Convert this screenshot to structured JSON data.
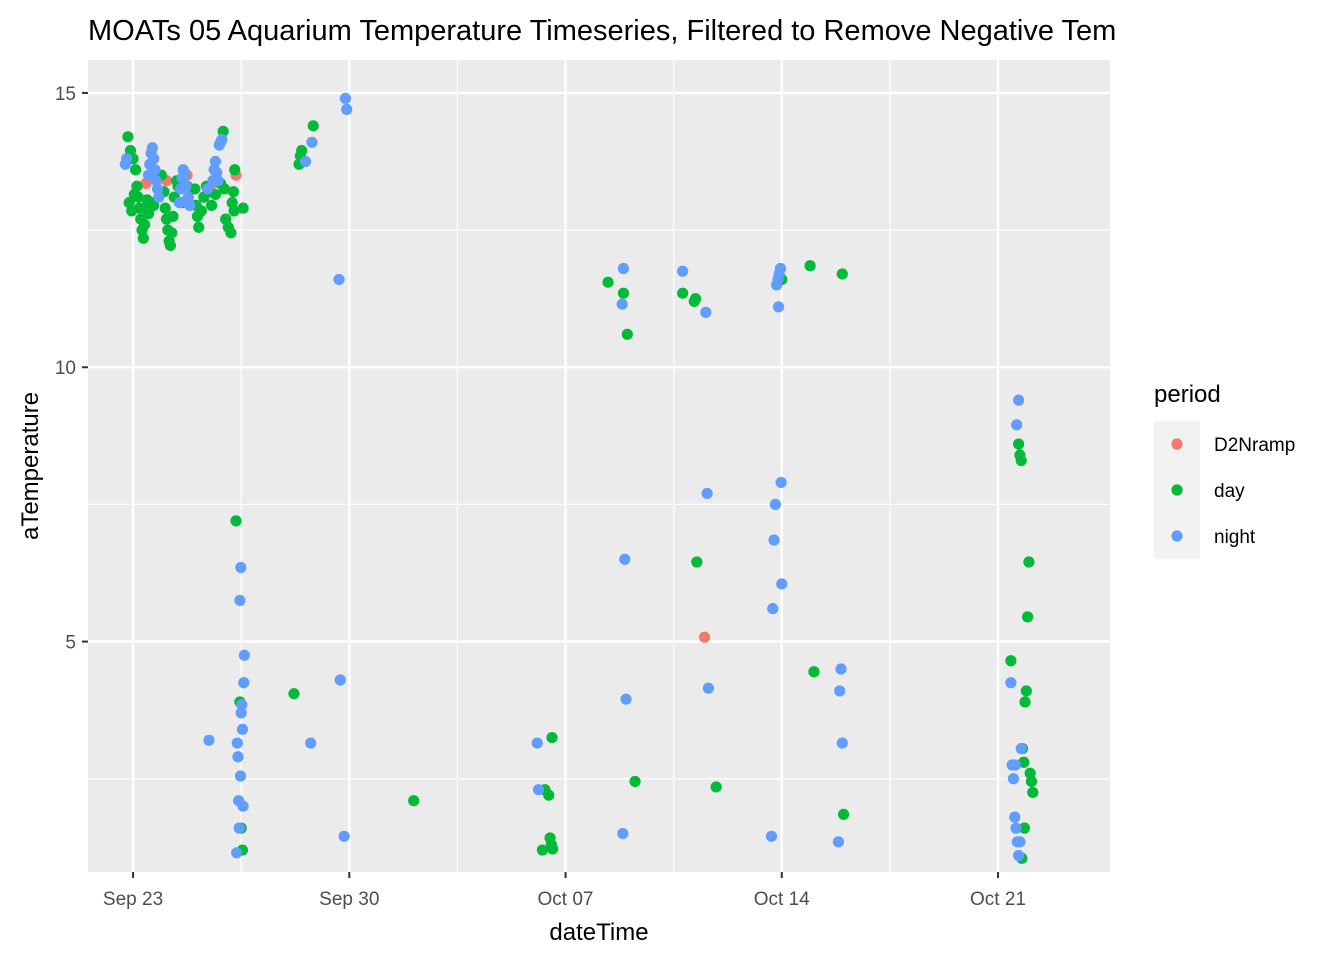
{
  "chart_data": {
    "type": "scatter",
    "title": "MOATs 05 Aquarium Temperature Timeseries, Filtered to Remove Negative Tem",
    "xlabel": "dateTime",
    "ylabel": "aTemperature",
    "x_is_date": true,
    "xlim": [
      "2019-09-21T13:00",
      "2019-10-24T15:00"
    ],
    "ylim": [
      0.8,
      15.6
    ],
    "x_ticks": [
      {
        "label": "Sep 23",
        "value": "2019-09-23T00:00"
      },
      {
        "label": "Sep 30",
        "value": "2019-09-30T00:00"
      },
      {
        "label": "Oct 07",
        "value": "2019-10-07T00:00"
      },
      {
        "label": "Oct 14",
        "value": "2019-10-14T00:00"
      },
      {
        "label": "Oct 21",
        "value": "2019-10-21T00:00"
      }
    ],
    "y_ticks": [
      5,
      10,
      15
    ],
    "grid": true,
    "legend": {
      "title": "period",
      "placement": "right"
    },
    "series": [
      {
        "name": "D2Nramp",
        "color": "#F8766D",
        "points": [
          [
            "2019-09-23T10:00",
            13.35
          ],
          [
            "2019-09-24T02:00",
            13.4
          ],
          [
            "2019-09-24T18:00",
            13.5
          ],
          [
            "2019-09-25T14:00",
            13.35
          ],
          [
            "2019-09-26T08:00",
            13.5
          ],
          [
            "2019-10-11T12:00",
            5.08
          ]
        ]
      },
      {
        "name": "day",
        "color": "#00BA38",
        "points": [
          [
            "2019-09-22T20:00",
            14.2
          ],
          [
            "2019-09-22T22:00",
            13.95
          ],
          [
            "2019-09-23T00:00",
            13.8
          ],
          [
            "2019-09-23T02:00",
            13.6
          ],
          [
            "2019-09-23T03:00",
            13.3
          ],
          [
            "2019-09-23T04:00",
            13.1
          ],
          [
            "2019-09-23T05:00",
            12.9
          ],
          [
            "2019-09-23T06:00",
            12.7
          ],
          [
            "2019-09-23T07:00",
            12.5
          ],
          [
            "2019-09-23T08:00",
            12.35
          ],
          [
            "2019-09-23T09:00",
            12.6
          ],
          [
            "2019-09-23T10:00",
            12.9
          ],
          [
            "2019-09-23T11:00",
            13.05
          ],
          [
            "2019-09-22T21:00",
            13.0
          ],
          [
            "2019-09-22T23:00",
            12.85
          ],
          [
            "2019-09-23T01:00",
            13.15
          ],
          [
            "2019-09-23T12:00",
            12.8
          ],
          [
            "2019-09-23T14:00",
            13.0
          ],
          [
            "2019-09-23T16:00",
            12.95
          ],
          [
            "2019-09-23T22:00",
            13.5
          ],
          [
            "2019-09-24T00:00",
            13.2
          ],
          [
            "2019-09-24T01:00",
            12.9
          ],
          [
            "2019-09-24T02:00",
            12.7
          ],
          [
            "2019-09-24T03:00",
            12.5
          ],
          [
            "2019-09-24T04:00",
            12.3
          ],
          [
            "2019-09-24T05:00",
            12.22
          ],
          [
            "2019-09-24T06:00",
            12.45
          ],
          [
            "2019-09-24T07:00",
            12.75
          ],
          [
            "2019-09-24T08:00",
            13.1
          ],
          [
            "2019-09-24T10:00",
            13.4
          ],
          [
            "2019-09-24T11:00",
            13.3
          ],
          [
            "2019-09-24T14:00",
            13.0
          ],
          [
            "2019-09-24T18:00",
            13.3
          ],
          [
            "2019-09-25T00:00",
            13.25
          ],
          [
            "2019-09-25T01:00",
            12.95
          ],
          [
            "2019-09-25T02:00",
            12.75
          ],
          [
            "2019-09-25T03:00",
            12.55
          ],
          [
            "2019-09-25T05:00",
            12.85
          ],
          [
            "2019-09-25T07:00",
            13.1
          ],
          [
            "2019-09-25T09:00",
            13.3
          ],
          [
            "2019-09-25T11:00",
            13.2
          ],
          [
            "2019-09-25T13:00",
            12.95
          ],
          [
            "2019-09-25T16:00",
            13.15
          ],
          [
            "2019-09-25T20:00",
            13.35
          ],
          [
            "2019-09-25T22:00",
            14.3
          ],
          [
            "2019-09-25T23:00",
            13.25
          ],
          [
            "2019-09-26T00:00",
            12.7
          ],
          [
            "2019-09-26T02:00",
            12.55
          ],
          [
            "2019-09-26T04:00",
            12.45
          ],
          [
            "2019-09-26T05:00",
            13.0
          ],
          [
            "2019-09-26T06:00",
            13.2
          ],
          [
            "2019-09-26T07:00",
            13.6
          ],
          [
            "2019-09-26T08:00",
            7.2
          ],
          [
            "2019-09-26T11:00",
            3.9
          ],
          [
            "2019-09-26T12:00",
            1.6
          ],
          [
            "2019-09-26T13:00",
            1.2
          ],
          [
            "2019-09-26T13:30",
            12.9
          ],
          [
            "2019-09-26T06:30",
            12.85
          ],
          [
            "2019-09-28T05:00",
            4.05
          ],
          [
            "2019-09-28T09:00",
            13.7
          ],
          [
            "2019-09-28T10:00",
            13.85
          ],
          [
            "2019-09-28T11:00",
            13.95
          ],
          [
            "2019-09-28T20:00",
            14.4
          ],
          [
            "2019-10-02T02:00",
            2.1
          ],
          [
            "2019-10-06T06:00",
            1.2
          ],
          [
            "2019-10-06T08:00",
            2.3
          ],
          [
            "2019-10-06T11:00",
            2.2
          ],
          [
            "2019-10-06T12:00",
            1.42
          ],
          [
            "2019-10-06T13:00",
            1.3
          ],
          [
            "2019-10-06T14:00",
            1.22
          ],
          [
            "2019-10-06T13:30",
            3.25
          ],
          [
            "2019-10-08T09:00",
            11.55
          ],
          [
            "2019-10-08T21:00",
            11.35
          ],
          [
            "2019-10-09T00:00",
            10.6
          ],
          [
            "2019-10-09T06:00",
            2.45
          ],
          [
            "2019-10-10T19:00",
            11.35
          ],
          [
            "2019-10-11T04:00",
            11.2
          ],
          [
            "2019-10-11T05:00",
            11.25
          ],
          [
            "2019-10-11T06:00",
            6.45
          ],
          [
            "2019-10-11T21:00",
            2.35
          ],
          [
            "2019-10-14T00:00",
            11.6
          ],
          [
            "2019-10-14T22:00",
            11.85
          ],
          [
            "2019-10-15T01:00",
            4.45
          ],
          [
            "2019-10-15T23:00",
            11.7
          ],
          [
            "2019-10-16T00:00",
            1.85
          ],
          [
            "2019-10-21T10:00",
            4.65
          ],
          [
            "2019-10-21T16:00",
            8.6
          ],
          [
            "2019-10-21T17:00",
            8.4
          ],
          [
            "2019-10-21T18:00",
            8.3
          ],
          [
            "2019-10-21T19:00",
            3.05
          ],
          [
            "2019-10-21T20:00",
            2.8
          ],
          [
            "2019-10-21T21:00",
            3.9
          ],
          [
            "2019-10-21T22:00",
            4.1
          ],
          [
            "2019-10-21T23:00",
            5.45
          ],
          [
            "2019-10-22T00:00",
            6.45
          ],
          [
            "2019-10-22T01:00",
            2.6
          ],
          [
            "2019-10-22T02:00",
            2.45
          ],
          [
            "2019-10-22T03:00",
            2.25
          ],
          [
            "2019-10-21T18:30",
            1.05
          ],
          [
            "2019-10-21T20:30",
            1.6
          ]
        ]
      },
      {
        "name": "night",
        "color": "#619CFF",
        "points": [
          [
            "2019-09-22T18:00",
            13.7
          ],
          [
            "2019-09-22T19:00",
            13.8
          ],
          [
            "2019-09-23T12:00",
            13.5
          ],
          [
            "2019-09-23T13:00",
            13.7
          ],
          [
            "2019-09-23T14:00",
            13.9
          ],
          [
            "2019-09-23T15:00",
            14.0
          ],
          [
            "2019-09-23T16:00",
            13.8
          ],
          [
            "2019-09-23T17:00",
            13.6
          ],
          [
            "2019-09-23T18:00",
            13.4
          ],
          [
            "2019-09-23T19:00",
            13.25
          ],
          [
            "2019-09-23T20:00",
            13.1
          ],
          [
            "2019-09-24T12:00",
            13.0
          ],
          [
            "2019-09-24T13:00",
            13.25
          ],
          [
            "2019-09-24T14:00",
            13.45
          ],
          [
            "2019-09-24T15:00",
            13.6
          ],
          [
            "2019-09-24T16:00",
            13.5
          ],
          [
            "2019-09-24T17:00",
            13.3
          ],
          [
            "2019-09-24T19:00",
            13.1
          ],
          [
            "2019-09-24T20:00",
            12.95
          ],
          [
            "2019-09-25T14:00",
            13.4
          ],
          [
            "2019-09-25T15:00",
            13.6
          ],
          [
            "2019-09-25T16:00",
            13.75
          ],
          [
            "2019-09-25T17:00",
            13.55
          ],
          [
            "2019-09-25T18:00",
            13.4
          ],
          [
            "2019-09-25T19:00",
            14.05
          ],
          [
            "2019-09-25T20:00",
            14.1
          ],
          [
            "2019-09-25T21:00",
            14.15
          ],
          [
            "2019-09-25T10:00",
            13.25
          ],
          [
            "2019-09-25T11:00",
            3.2
          ],
          [
            "2019-09-26T09:00",
            3.15
          ],
          [
            "2019-09-26T09:30",
            2.9
          ],
          [
            "2019-09-26T10:00",
            2.1
          ],
          [
            "2019-09-26T10:30",
            1.6
          ],
          [
            "2019-09-26T08:30",
            1.15
          ],
          [
            "2019-09-26T11:30",
            2.55
          ],
          [
            "2019-09-26T12:00",
            3.7
          ],
          [
            "2019-09-26T12:30",
            3.85
          ],
          [
            "2019-09-26T13:00",
            3.4
          ],
          [
            "2019-09-26T13:30",
            2.0
          ],
          [
            "2019-09-26T14:00",
            4.25
          ],
          [
            "2019-09-26T14:30",
            4.75
          ],
          [
            "2019-09-26T11:00",
            5.75
          ],
          [
            "2019-09-26T11:45",
            6.35
          ],
          [
            "2019-09-28T18:00",
            3.15
          ],
          [
            "2019-09-28T14:00",
            13.75
          ],
          [
            "2019-09-28T19:00",
            14.1
          ],
          [
            "2019-09-29T16:00",
            11.6
          ],
          [
            "2019-09-29T17:00",
            4.3
          ],
          [
            "2019-09-29T20:00",
            1.45
          ],
          [
            "2019-09-29T21:00",
            14.9
          ],
          [
            "2019-09-29T22:00",
            14.7
          ],
          [
            "2019-10-06T02:00",
            3.15
          ],
          [
            "2019-10-06T03:00",
            2.3
          ],
          [
            "2019-10-08T20:00",
            11.15
          ],
          [
            "2019-10-08T21:00",
            11.8
          ],
          [
            "2019-10-08T22:00",
            6.5
          ],
          [
            "2019-10-08T23:00",
            3.95
          ],
          [
            "2019-10-08T20:30",
            1.5
          ],
          [
            "2019-10-10T19:00",
            11.75
          ],
          [
            "2019-10-11T13:00",
            11.0
          ],
          [
            "2019-10-11T14:00",
            7.7
          ],
          [
            "2019-10-11T15:00",
            4.15
          ],
          [
            "2019-10-13T16:00",
            1.45
          ],
          [
            "2019-10-13T17:00",
            5.6
          ],
          [
            "2019-10-13T18:00",
            6.85
          ],
          [
            "2019-10-13T19:00",
            7.5
          ],
          [
            "2019-10-13T20:00",
            11.5
          ],
          [
            "2019-10-13T21:00",
            11.6
          ],
          [
            "2019-10-13T22:00",
            11.7
          ],
          [
            "2019-10-13T23:00",
            11.8
          ],
          [
            "2019-10-13T21:30",
            11.1
          ],
          [
            "2019-10-13T23:30",
            7.9
          ],
          [
            "2019-10-14T00:00",
            6.05
          ],
          [
            "2019-10-15T20:00",
            1.35
          ],
          [
            "2019-10-15T21:00",
            4.1
          ],
          [
            "2019-10-15T22:00",
            4.5
          ],
          [
            "2019-10-15T23:00",
            3.15
          ],
          [
            "2019-10-21T10:00",
            4.25
          ],
          [
            "2019-10-21T11:00",
            2.75
          ],
          [
            "2019-10-21T12:00",
            2.5
          ],
          [
            "2019-10-21T13:00",
            1.8
          ],
          [
            "2019-10-21T14:00",
            1.6
          ],
          [
            "2019-10-21T15:00",
            1.35
          ],
          [
            "2019-10-21T16:00",
            1.1
          ],
          [
            "2019-10-21T14:30",
            8.95
          ],
          [
            "2019-10-21T16:00",
            9.4
          ],
          [
            "2019-10-21T18:00",
            3.05
          ],
          [
            "2019-10-21T17:00",
            1.35
          ],
          [
            "2019-10-21T13:30",
            2.75
          ]
        ]
      }
    ]
  }
}
